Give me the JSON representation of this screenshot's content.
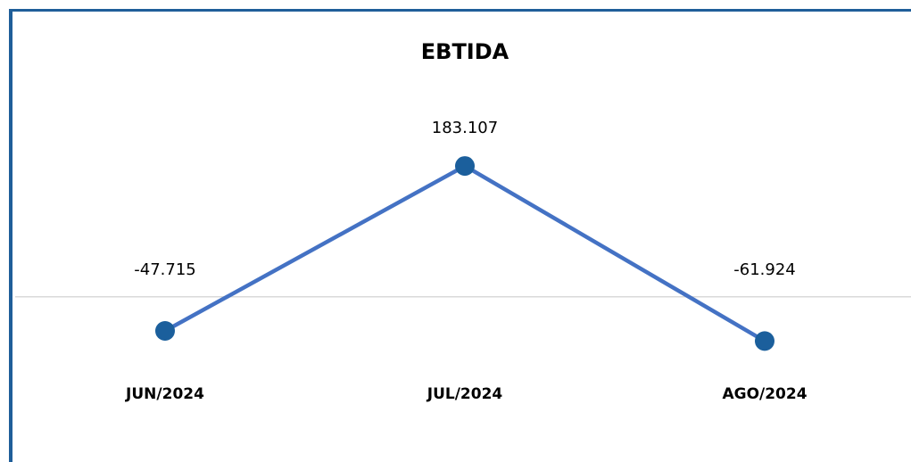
{
  "chart_data": {
    "type": "line",
    "title": "EBTIDA",
    "categories": [
      "JUN/2024",
      "JUL/2024",
      "AGO/2024"
    ],
    "series": [
      {
        "name": "EBTIDA",
        "color": "#4472c4",
        "marker_color": "#1b5f9c",
        "values": [
          -47715,
          183107,
          -61924
        ],
        "value_labels": [
          "-47.715",
          "183.107",
          "-61.924"
        ]
      }
    ],
    "ylim": [
      -100000,
      250000
    ]
  }
}
